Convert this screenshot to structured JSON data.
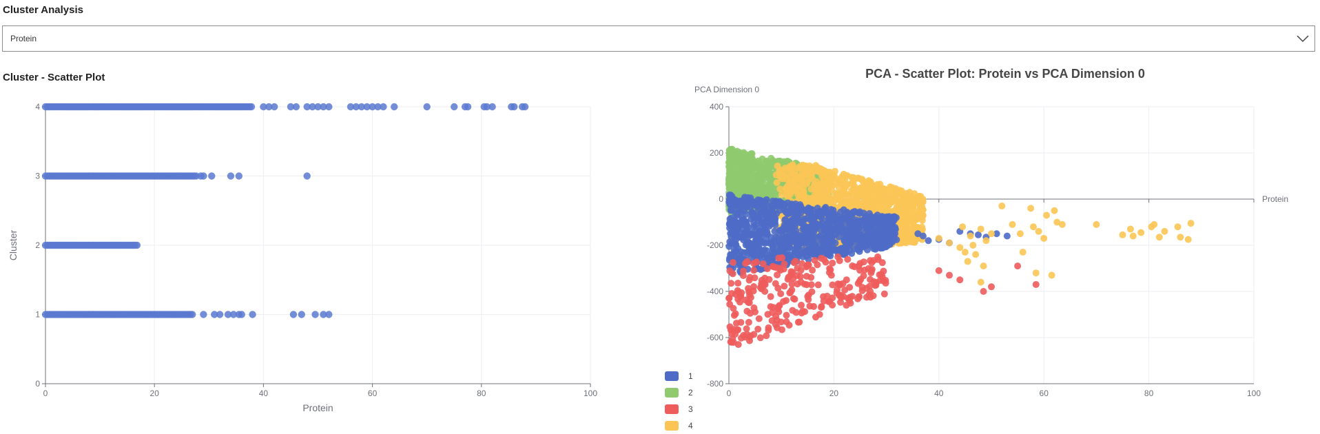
{
  "page": {
    "title": "Cluster Analysis",
    "select": {
      "value": "Protein",
      "icon": "chevron-down-icon"
    },
    "left_title": "Cluster - Scatter Plot"
  },
  "colors": {
    "1": "#4e6bc6",
    "2": "#8fca6f",
    "3": "#ee5c5c",
    "4": "#fbc555",
    "single": "#5b79d0",
    "axis": "#6e7079",
    "grid": "#eceef2"
  },
  "chart_data": [
    {
      "type": "scatter",
      "title": "",
      "xlabel": "Protein",
      "ylabel": "Cluster",
      "xlim": [
        0,
        100
      ],
      "ylim": [
        0,
        4
      ],
      "xticks": [
        0,
        20,
        40,
        60,
        80,
        100
      ],
      "yticks": [
        0,
        1,
        2,
        3,
        4
      ],
      "grid": true,
      "points_by_cluster": {
        "4": {
          "dense_range": [
            0,
            38
          ],
          "x": [
            40,
            41,
            42,
            45,
            46,
            48,
            49,
            50,
            51,
            52,
            56,
            57,
            58,
            59,
            60,
            61,
            62,
            64,
            70,
            75,
            77,
            77.5,
            80.5,
            81,
            82,
            85.5,
            86,
            87.5,
            88
          ]
        },
        "3": {
          "dense_range": [
            0,
            28
          ],
          "x": [
            28.5,
            29,
            30.5,
            34,
            35.5,
            48
          ]
        },
        "2": {
          "dense_range": [
            0,
            17
          ],
          "x": []
        },
        "1": {
          "dense_range": [
            0,
            27
          ],
          "x": [
            29,
            31,
            32,
            33.5,
            34.5,
            35.5,
            36,
            38,
            45.5,
            47,
            49.5,
            51,
            52
          ]
        }
      }
    },
    {
      "type": "scatter",
      "title": "PCA - Scatter Plot: Protein vs PCA Dimension 0",
      "xlabel": "Protein",
      "ylabel": "PCA Dimension 0",
      "xlim": [
        0,
        100
      ],
      "ylim": [
        -800,
        400
      ],
      "xticks": [
        0,
        20,
        40,
        60,
        80,
        100
      ],
      "yticks": [
        400,
        200,
        0,
        -200,
        -400,
        -600,
        -800
      ],
      "grid": true,
      "legend": {
        "position": "bottom-left",
        "entries": [
          "1",
          "2",
          "3",
          "4"
        ]
      },
      "outliers": {
        "4": [
          [
            40,
            -170
          ],
          [
            42,
            -190
          ],
          [
            44,
            -210
          ],
          [
            44.5,
            -120
          ],
          [
            45,
            -230
          ],
          [
            45.5,
            -270
          ],
          [
            46,
            -160
          ],
          [
            46.5,
            -200
          ],
          [
            47,
            -240
          ],
          [
            48,
            -130
          ],
          [
            48,
            -360
          ],
          [
            48.5,
            -290
          ],
          [
            49,
            -180
          ],
          [
            50,
            -150
          ],
          [
            52,
            -30
          ],
          [
            54,
            -110
          ],
          [
            55.5,
            -150
          ],
          [
            56,
            -230
          ],
          [
            57.5,
            -40
          ],
          [
            58,
            -120
          ],
          [
            58.5,
            -320
          ],
          [
            59,
            -140
          ],
          [
            60,
            -170
          ],
          [
            60.5,
            -70
          ],
          [
            61.5,
            -330
          ],
          [
            62,
            -50
          ],
          [
            62.5,
            -100
          ],
          [
            63.5,
            -110
          ],
          [
            70,
            -110
          ],
          [
            75,
            -155
          ],
          [
            76.5,
            -130
          ],
          [
            77,
            -160
          ],
          [
            78.5,
            -145
          ],
          [
            80.5,
            -120
          ],
          [
            81,
            -110
          ],
          [
            82,
            -165
          ],
          [
            83,
            -140
          ],
          [
            85.5,
            -120
          ],
          [
            86,
            -165
          ],
          [
            87.5,
            -175
          ],
          [
            88,
            -105
          ]
        ],
        "1": [
          [
            36,
            -150
          ],
          [
            37,
            -160
          ],
          [
            38,
            -180
          ],
          [
            40,
            -175
          ],
          [
            42,
            -190
          ],
          [
            44,
            -140
          ],
          [
            46,
            -150
          ],
          [
            47.5,
            -155
          ],
          [
            49,
            -165
          ],
          [
            51,
            -150
          ],
          [
            53,
            -160
          ]
        ],
        "3": [
          [
            40,
            -310
          ],
          [
            42,
            -330
          ],
          [
            44,
            -350
          ],
          [
            48.5,
            -400
          ],
          [
            50,
            -380
          ],
          [
            55,
            -290
          ],
          [
            58.5,
            -370
          ]
        ],
        "2": []
      }
    }
  ]
}
